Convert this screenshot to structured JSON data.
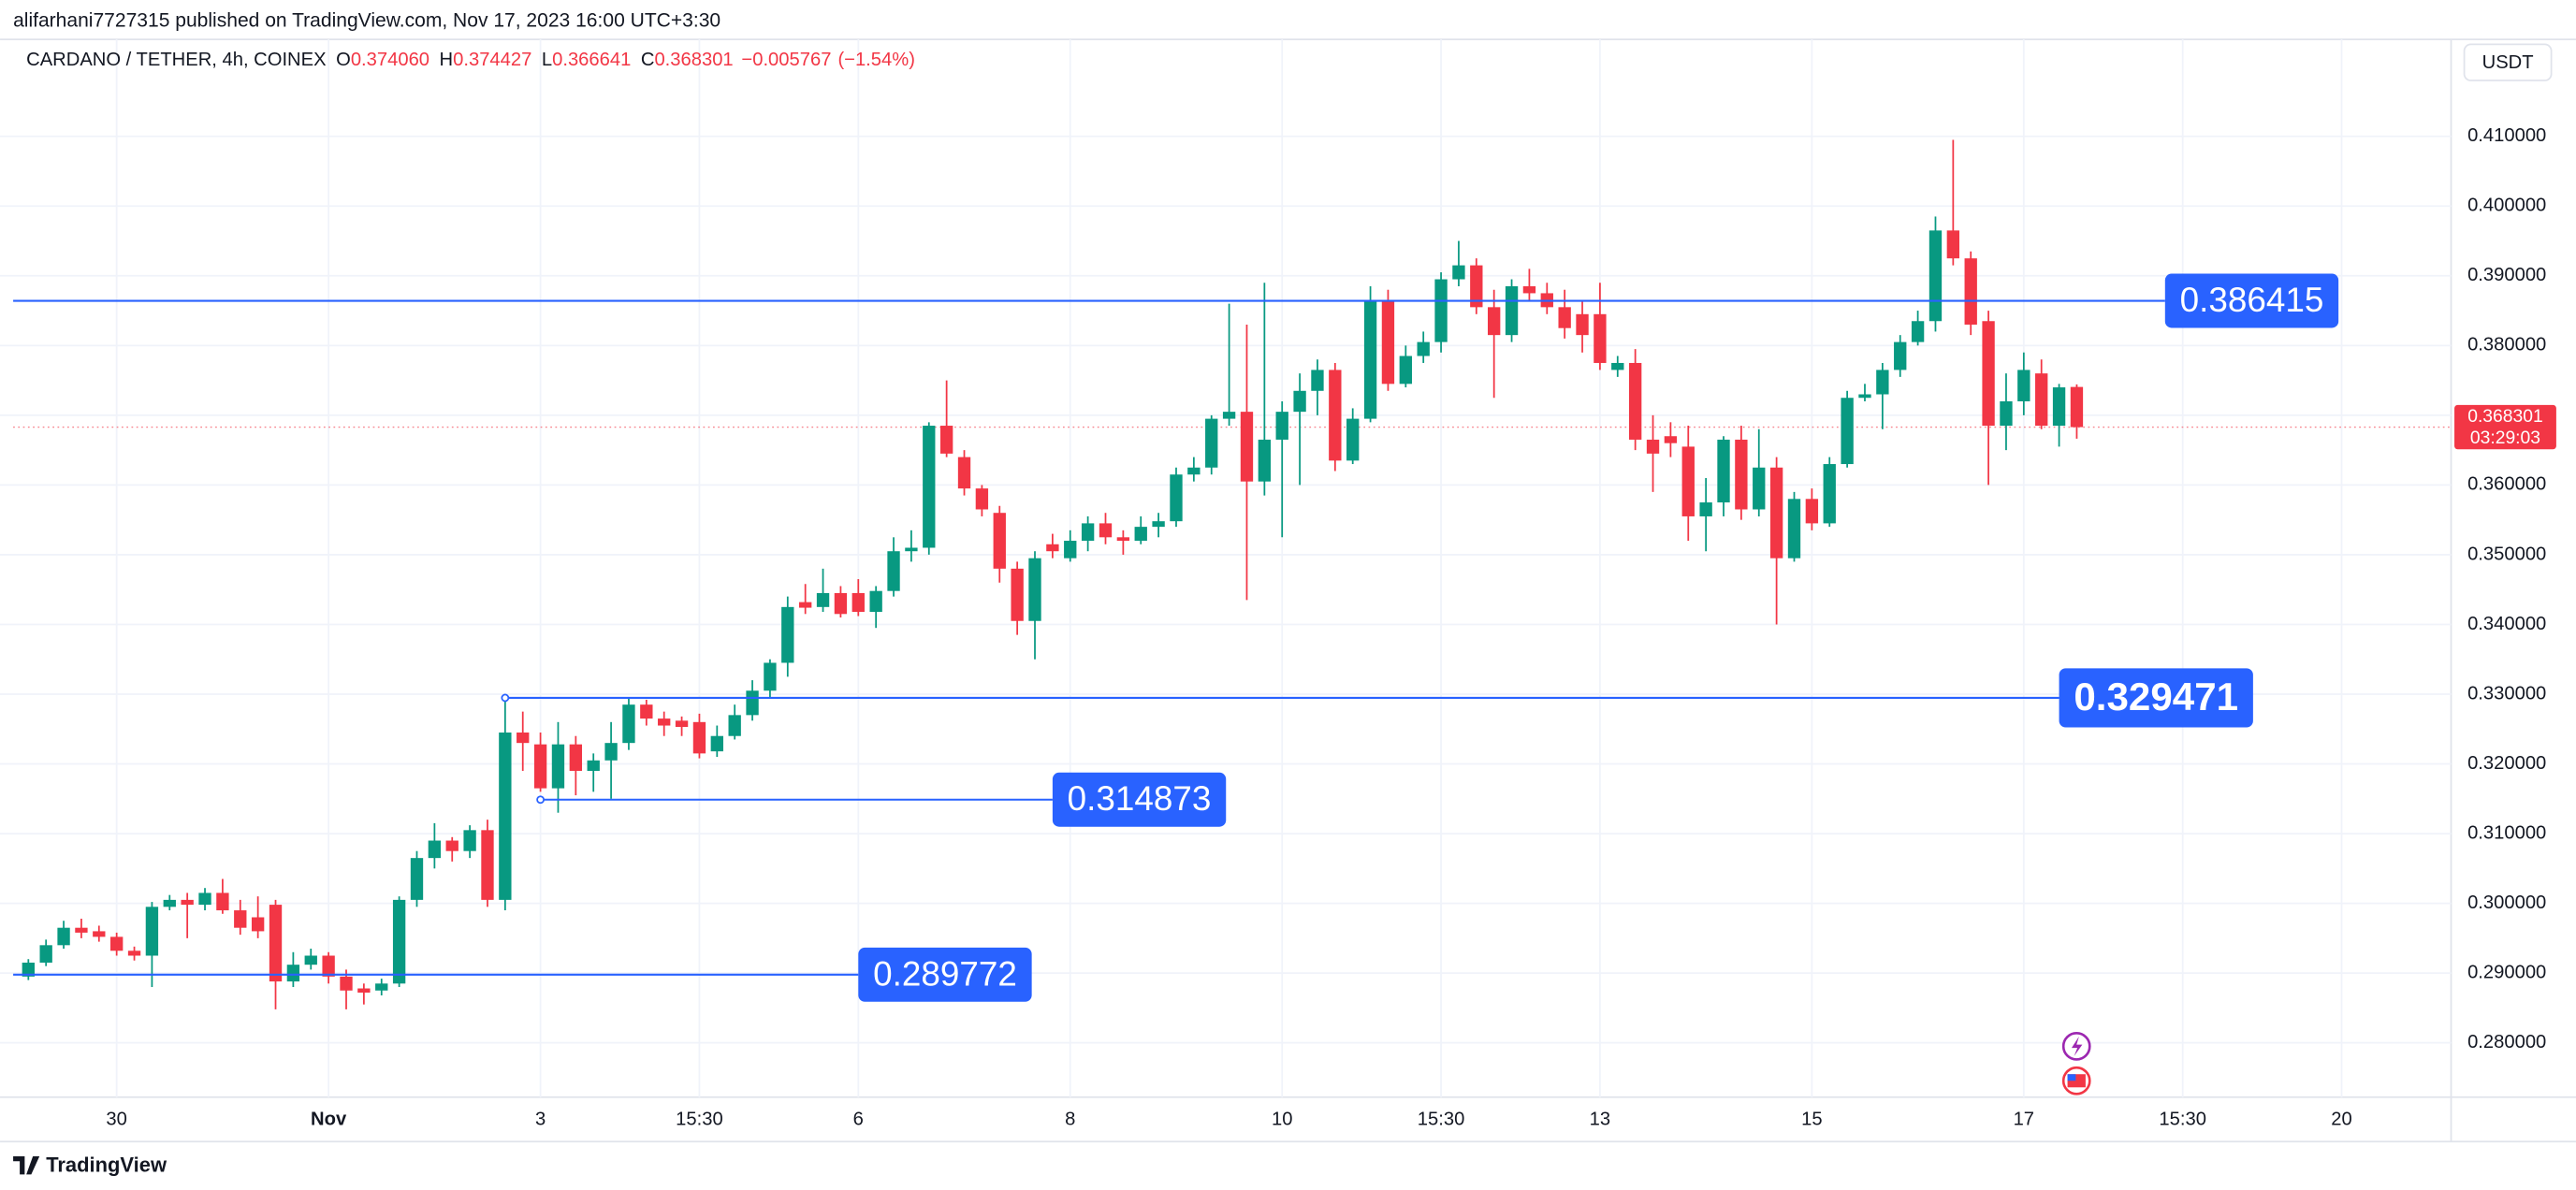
{
  "header": {
    "text": "alifarhani7727315 published on TradingView.com, Nov 17, 2023 16:00 UTC+3:30"
  },
  "footer": {
    "brand": "TradingView"
  },
  "chart_data": {
    "type": "candlestick",
    "currency": "USDT",
    "legend": {
      "symbol": "CARDANO / TETHER, 4h, COINEX",
      "fields": [
        {
          "key": "O",
          "value": 0.37406,
          "label": "0.374060"
        },
        {
          "key": "H",
          "value": 0.374427,
          "label": "0.374427"
        },
        {
          "key": "L",
          "value": 0.366641,
          "label": "0.366641"
        },
        {
          "key": "C",
          "value": 0.368301,
          "label": "0.368301"
        }
      ],
      "change": {
        "value": -0.005767,
        "label": "−0.005767"
      },
      "change_pct": {
        "value": -1.54,
        "label": "(−1.54%)"
      }
    },
    "up_color": "#089981",
    "down_color": "#f23645",
    "grid": true,
    "categories": [
      null,
      null,
      null,
      null,
      null,
      null,
      null,
      null,
      null,
      null,
      null,
      null,
      null,
      null,
      null,
      null,
      null,
      null,
      null,
      null,
      null,
      null,
      null,
      null,
      null,
      null,
      null,
      null,
      null,
      null,
      null,
      null,
      null,
      null,
      null,
      null,
      null,
      null,
      null,
      null,
      null,
      null,
      null,
      null,
      null,
      null,
      null,
      null,
      null,
      null,
      null,
      null,
      null,
      null,
      null,
      null,
      null,
      null,
      null,
      null,
      null,
      null,
      null,
      null,
      null,
      null,
      null,
      null,
      null,
      null,
      null,
      null,
      null,
      null,
      null,
      null,
      null,
      null,
      null,
      null,
      null,
      null,
      null,
      null,
      null,
      null,
      null,
      null,
      null,
      null,
      null,
      null,
      null,
      null,
      null,
      null,
      null,
      null,
      null,
      null,
      null,
      null,
      null,
      null,
      null,
      null,
      null,
      null,
      null,
      null,
      null,
      null,
      null,
      null,
      null,
      null,
      null
    ],
    "open": [
      0.2895,
      0.2915,
      0.294,
      0.2965,
      0.296,
      0.2952,
      0.2932,
      0.2925,
      0.2995,
      0.3005,
      0.2998,
      0.3015,
      0.299,
      0.298,
      0.2998,
      0.2888,
      0.2912,
      0.2925,
      0.2895,
      0.2878,
      0.2875,
      0.2885,
      0.3005,
      0.3065,
      0.309,
      0.3075,
      0.3105,
      0.3005,
      0.3245,
      0.3228,
      0.3165,
      0.3228,
      0.319,
      0.3205,
      0.323,
      0.3285,
      0.3265,
      0.3262,
      0.326,
      0.3218,
      0.324,
      0.327,
      0.3305,
      0.3345,
      0.3432,
      0.3425,
      0.3445,
      0.3445,
      0.3418,
      0.3448,
      0.3505,
      0.351,
      0.3685,
      0.364,
      0.3595,
      0.356,
      0.348,
      0.3405,
      0.3515,
      0.3495,
      0.352,
      0.3545,
      0.3525,
      0.352,
      0.354,
      0.3548,
      0.3615,
      0.3625,
      0.3695,
      0.3705,
      0.3605,
      0.3665,
      0.3705,
      0.3735,
      0.3765,
      0.3635,
      0.3695,
      0.3865,
      0.3745,
      0.3785,
      0.3805,
      0.3895,
      0.3915,
      0.3855,
      0.3815,
      0.3885,
      0.3875,
      0.3855,
      0.3845,
      0.3845,
      0.3765,
      0.3775,
      0.3665,
      0.367,
      0.3655,
      0.3555,
      0.3575,
      0.3665,
      0.3565,
      0.3625,
      0.3495,
      0.358,
      0.3545,
      0.363,
      0.3725,
      0.373,
      0.3765,
      0.3805,
      0.3835,
      0.3965,
      0.3925,
      0.3835,
      0.3685,
      0.372,
      0.376,
      0.3685,
      0.37406
    ],
    "high": [
      0.292,
      0.2948,
      0.2975,
      0.2978,
      0.2968,
      0.2958,
      0.2938,
      0.3002,
      0.3012,
      0.3015,
      0.3022,
      0.3035,
      0.3005,
      0.301,
      0.3005,
      0.293,
      0.2935,
      0.293,
      0.2905,
      0.2885,
      0.2892,
      0.301,
      0.3075,
      0.3115,
      0.3095,
      0.3112,
      0.312,
      0.3294,
      0.3275,
      0.3245,
      0.326,
      0.324,
      0.3215,
      0.326,
      0.3295,
      0.3292,
      0.3275,
      0.3268,
      0.3272,
      0.3255,
      0.3285,
      0.332,
      0.335,
      0.344,
      0.3458,
      0.348,
      0.3455,
      0.3465,
      0.3455,
      0.3525,
      0.3535,
      0.369,
      0.375,
      0.365,
      0.36,
      0.357,
      0.349,
      0.3505,
      0.353,
      0.3535,
      0.3555,
      0.356,
      0.3535,
      0.3555,
      0.356,
      0.3625,
      0.364,
      0.37,
      0.386,
      0.383,
      0.389,
      0.372,
      0.376,
      0.378,
      0.3775,
      0.371,
      0.3885,
      0.388,
      0.38,
      0.382,
      0.3905,
      0.395,
      0.3925,
      0.388,
      0.3895,
      0.391,
      0.389,
      0.388,
      0.3865,
      0.389,
      0.3785,
      0.3795,
      0.37,
      0.369,
      0.3685,
      0.361,
      0.367,
      0.3685,
      0.368,
      0.364,
      0.359,
      0.3595,
      0.364,
      0.3735,
      0.3745,
      0.3775,
      0.3815,
      0.385,
      0.3985,
      0.4095,
      0.3935,
      0.385,
      0.376,
      0.379,
      0.378,
      0.3745,
      0.374427
    ],
    "low": [
      0.289,
      0.291,
      0.2935,
      0.295,
      0.2945,
      0.2925,
      0.2918,
      0.288,
      0.299,
      0.295,
      0.299,
      0.2985,
      0.2955,
      0.295,
      0.2848,
      0.288,
      0.2905,
      0.2885,
      0.2848,
      0.2855,
      0.2868,
      0.288,
      0.2995,
      0.305,
      0.306,
      0.3065,
      0.2995,
      0.299,
      0.319,
      0.316,
      0.313,
      0.3155,
      0.316,
      0.315,
      0.322,
      0.3255,
      0.324,
      0.324,
      0.3208,
      0.321,
      0.3235,
      0.3262,
      0.3295,
      0.3325,
      0.3415,
      0.3418,
      0.341,
      0.3412,
      0.3395,
      0.344,
      0.349,
      0.35,
      0.364,
      0.3585,
      0.3555,
      0.346,
      0.3385,
      0.335,
      0.3495,
      0.349,
      0.3505,
      0.3515,
      0.35,
      0.3515,
      0.3525,
      0.354,
      0.3605,
      0.3615,
      0.3685,
      0.3435,
      0.3585,
      0.3525,
      0.36,
      0.37,
      0.362,
      0.363,
      0.369,
      0.3735,
      0.374,
      0.3775,
      0.379,
      0.3885,
      0.3845,
      0.3725,
      0.3805,
      0.3865,
      0.3845,
      0.381,
      0.379,
      0.3765,
      0.3755,
      0.365,
      0.359,
      0.364,
      0.352,
      0.3505,
      0.3555,
      0.355,
      0.3555,
      0.34,
      0.349,
      0.3535,
      0.354,
      0.3625,
      0.372,
      0.368,
      0.3755,
      0.38,
      0.382,
      0.3915,
      0.3815,
      0.36,
      0.365,
      0.37,
      0.368,
      0.3655,
      0.366641
    ],
    "close": [
      0.2915,
      0.294,
      0.2965,
      0.2958,
      0.2952,
      0.2932,
      0.2925,
      0.2995,
      0.3005,
      0.2998,
      0.3015,
      0.299,
      0.2965,
      0.296,
      0.2888,
      0.2912,
      0.2925,
      0.2895,
      0.2875,
      0.2872,
      0.2885,
      0.3005,
      0.3065,
      0.309,
      0.3075,
      0.3105,
      0.3005,
      0.3245,
      0.323,
      0.3165,
      0.3228,
      0.319,
      0.3205,
      0.323,
      0.3285,
      0.3265,
      0.3255,
      0.3253,
      0.3215,
      0.324,
      0.327,
      0.3305,
      0.3345,
      0.3425,
      0.3424,
      0.3445,
      0.3415,
      0.3418,
      0.3448,
      0.3505,
      0.351,
      0.3685,
      0.3645,
      0.3595,
      0.3565,
      0.348,
      0.3405,
      0.3495,
      0.3505,
      0.352,
      0.3545,
      0.3525,
      0.352,
      0.354,
      0.3548,
      0.3615,
      0.3625,
      0.3695,
      0.3705,
      0.3605,
      0.3665,
      0.3705,
      0.3735,
      0.3765,
      0.3635,
      0.3695,
      0.3865,
      0.3745,
      0.3785,
      0.3805,
      0.3895,
      0.3915,
      0.3855,
      0.3815,
      0.3885,
      0.3875,
      0.3855,
      0.3825,
      0.3815,
      0.3775,
      0.3775,
      0.3665,
      0.3645,
      0.366,
      0.3555,
      0.3575,
      0.3665,
      0.3565,
      0.3625,
      0.3495,
      0.358,
      0.3545,
      0.363,
      0.3725,
      0.373,
      0.3765,
      0.3805,
      0.3835,
      0.3965,
      0.3925,
      0.383,
      0.3685,
      0.372,
      0.3765,
      0.3685,
      0.374,
      0.368301
    ],
    "xlim": [
      -0.86,
      137.2
    ],
    "xticks": [
      {
        "value": 5,
        "label": "30"
      },
      {
        "value": 17,
        "label": "Nov"
      },
      {
        "value": 29,
        "label": "3"
      },
      {
        "value": 38,
        "label": "15:30"
      },
      {
        "value": 47,
        "label": "6"
      },
      {
        "value": 59,
        "label": "8"
      },
      {
        "value": 71,
        "label": "10"
      },
      {
        "value": 80,
        "label": "15:30"
      },
      {
        "value": 89,
        "label": "13"
      },
      {
        "value": 101,
        "label": "15"
      },
      {
        "value": 113,
        "label": "17"
      },
      {
        "value": 122,
        "label": "15:30"
      },
      {
        "value": 131,
        "label": "20"
      }
    ],
    "ylim": [
      0.2722,
      0.4239
    ],
    "yticks": [
      {
        "value": 0.28,
        "label": "0.280000"
      },
      {
        "value": 0.29,
        "label": "0.290000"
      },
      {
        "value": 0.3,
        "label": "0.300000"
      },
      {
        "value": 0.31,
        "label": "0.310000"
      },
      {
        "value": 0.32,
        "label": "0.320000"
      },
      {
        "value": 0.33,
        "label": "0.330000"
      },
      {
        "value": 0.34,
        "label": "0.340000"
      },
      {
        "value": 0.35,
        "label": "0.350000"
      },
      {
        "value": 0.36,
        "label": "0.360000"
      },
      {
        "value": 0.37,
        "label": "0.370000"
      },
      {
        "value": 0.38,
        "label": "0.380000"
      },
      {
        "value": 0.39,
        "label": "0.390000"
      },
      {
        "value": 0.4,
        "label": "0.400000"
      },
      {
        "value": 0.41,
        "label": "0.410000"
      }
    ],
    "horizontal_lines": [
      {
        "value": 0.386415,
        "x_start": null,
        "x_end": 121,
        "color": "#2962ff",
        "style": "normal"
      },
      {
        "value": 0.329471,
        "x_start": 27,
        "x_end": 115,
        "color": "#2962ff",
        "style": "bold"
      },
      {
        "value": 0.314873,
        "x_start": 29,
        "x_end": 58,
        "color": "#2962ff",
        "style": "normal"
      },
      {
        "value": 0.289772,
        "x_start": null,
        "x_end": 47,
        "color": "#2962ff",
        "style": "normal"
      }
    ],
    "last_price": 0.368301,
    "countdown": "03:29:03"
  }
}
